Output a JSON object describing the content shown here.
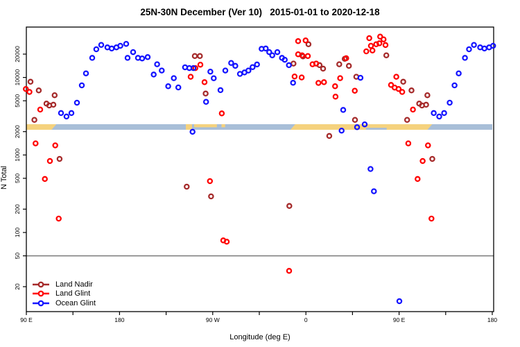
{
  "title": "25N-30N December (Ver 10)   2015-01-01 to 2020-12-18",
  "axes": {
    "x": {
      "label": "Longitude (deg E)",
      "major_ticks": [
        {
          "lon": 90,
          "label": "90 E"
        },
        {
          "lon": 180,
          "label": "180"
        },
        {
          "lon": 270,
          "label": "90 W"
        },
        {
          "lon": 360,
          "label": "0"
        },
        {
          "lon": 450,
          "label": "90 E"
        },
        {
          "lon": 540,
          "label": "180"
        }
      ],
      "minor_ticks": [
        135,
        225,
        315,
        405,
        495
      ],
      "range": [
        90,
        540
      ],
      "note": "longitude wraps eastward from 90E through 180, 90W, 0, back to 90E and 180"
    },
    "y": {
      "label": "N Total",
      "scale": "log10",
      "ticks": [
        20,
        50,
        100,
        200,
        500,
        1000,
        2000,
        5000,
        10000,
        20000
      ],
      "range": [
        8.5,
        38000
      ]
    },
    "reference_line_value": 50
  },
  "map_band": {
    "description": "land/ocean strip for 25N-30N latitude drawn across the plot",
    "top_value": 2495,
    "bottom_value": 2115,
    "ocean_color": "#a8bed8",
    "land_color": "#f5d27e",
    "land_segments": [
      {
        "from": 90,
        "to": 119,
        "part": "full",
        "slant_right": true
      },
      {
        "from": 244,
        "to": 250,
        "part": "full"
      },
      {
        "from": 252,
        "to": 274,
        "part": "top"
      },
      {
        "from": 278.5,
        "to": 282,
        "part": "top"
      },
      {
        "from": 345,
        "to": 482,
        "part": "full",
        "slant_left": true,
        "slant_right": true
      }
    ],
    "ocean_notches": [
      {
        "from": 418,
        "to": 438,
        "part": "bottom"
      }
    ]
  },
  "legend": {
    "items": [
      {
        "label": "Land Nadir",
        "color": "#a52a2a"
      },
      {
        "label": "Land Glint",
        "color": "#ff0000"
      },
      {
        "label": "Ocean Glint",
        "color": "#1414ff"
      }
    ]
  },
  "chart_data": {
    "type": "scatter",
    "marker": "open-circle",
    "title": "25N-30N December (Ver 10)   2015-01-01 to 2020-12-18",
    "xlabel": "Longitude (deg E)",
    "ylabel": "N Total",
    "xlim": [
      90,
      540
    ],
    "ylog": true,
    "repeat_rule": "points with lon <= 182 are re-plotted at lon + 360 (axis spans 450 deg)",
    "series": [
      {
        "name": "Land Nadir",
        "color": "#a52a2a",
        "points": [
          [
            94,
            8800
          ],
          [
            102,
            6800
          ],
          [
            109.4,
            4600
          ],
          [
            112.1,
            4350
          ],
          [
            116.1,
            4450
          ],
          [
            117.3,
            5900
          ],
          [
            97.8,
            2840
          ],
          [
            122.1,
            890
          ],
          [
            252.7,
            18900
          ],
          [
            257.6,
            18900
          ],
          [
            263.2,
            6200
          ],
          [
            244.9,
            390
          ],
          [
            268.4,
            292
          ],
          [
            344,
            220
          ],
          [
            348,
            15100
          ],
          [
            357.2,
            18700
          ],
          [
            362.5,
            26800
          ],
          [
            373.2,
            14400
          ],
          [
            376.6,
            13000
          ],
          [
            382.6,
            1760
          ],
          [
            392.2,
            14800
          ],
          [
            397.5,
            17400
          ],
          [
            401.5,
            14100
          ],
          [
            407.4,
            2840
          ],
          [
            408.7,
            10200
          ],
          [
            437.7,
            19300
          ]
        ]
      },
      {
        "name": "Land Glint",
        "color": "#ff0000",
        "points": [
          [
            89.5,
            7100
          ],
          [
            93,
            6500
          ],
          [
            103.4,
            3850
          ],
          [
            98.9,
            1410
          ],
          [
            117.9,
            1330
          ],
          [
            112.8,
            835
          ],
          [
            107.9,
            490
          ],
          [
            121.3,
            151
          ],
          [
            248.7,
            10200
          ],
          [
            253.2,
            13200
          ],
          [
            258.1,
            14600
          ],
          [
            262.1,
            8700
          ],
          [
            278.8,
            3440
          ],
          [
            267.3,
            460
          ],
          [
            280.2,
            79
          ],
          [
            283.5,
            76
          ],
          [
            343.8,
            32
          ],
          [
            349.1,
            10300
          ],
          [
            355.9,
            10000
          ],
          [
            352.5,
            29400
          ],
          [
            359.7,
            30000
          ],
          [
            352.5,
            19900
          ],
          [
            356.3,
            19300
          ],
          [
            361.9,
            18900
          ],
          [
            366.4,
            14800
          ],
          [
            369.9,
            15100
          ],
          [
            372.1,
            8500
          ],
          [
            377.5,
            8700
          ],
          [
            388.2,
            7700
          ],
          [
            393.1,
            9800
          ],
          [
            398.9,
            17700
          ],
          [
            388.6,
            5650
          ],
          [
            407.2,
            6740
          ],
          [
            418.3,
            21700
          ],
          [
            421.2,
            32100
          ],
          [
            422.8,
            25600
          ],
          [
            424.3,
            22300
          ],
          [
            427.9,
            26800
          ],
          [
            431,
            27600
          ],
          [
            431.7,
            33600
          ],
          [
            435,
            31000
          ],
          [
            436.9,
            26200
          ],
          [
            442.2,
            8000
          ],
          [
            445.7,
            7400
          ],
          [
            447.3,
            10200
          ]
        ]
      },
      {
        "name": "Ocean Glint",
        "color": "#1414ff",
        "points": [
          [
            123.5,
            3470
          ],
          [
            128.8,
            3130
          ],
          [
            133.5,
            3470
          ],
          [
            138.9,
            4720
          ],
          [
            143.6,
            7900
          ],
          [
            147.6,
            11300
          ],
          [
            153.6,
            17900
          ],
          [
            157.6,
            23100
          ],
          [
            162.3,
            26300
          ],
          [
            168.3,
            24400
          ],
          [
            172.4,
            23600
          ],
          [
            177,
            24400
          ],
          [
            180.8,
            25600
          ],
          [
            186.4,
            27100
          ],
          [
            187.8,
            17900
          ],
          [
            193.1,
            21200
          ],
          [
            197.8,
            17900
          ],
          [
            201.8,
            17600
          ],
          [
            207.2,
            18300
          ],
          [
            213,
            10900
          ],
          [
            216.3,
            14800
          ],
          [
            220.8,
            12300
          ],
          [
            227,
            7700
          ],
          [
            232.4,
            9800
          ],
          [
            236.8,
            7430
          ],
          [
            243.3,
            13500
          ],
          [
            247.4,
            13200
          ],
          [
            251.4,
            13200
          ],
          [
            250.5,
            1990
          ],
          [
            263.6,
            4850
          ],
          [
            267.7,
            11900
          ],
          [
            271,
            9770
          ],
          [
            277.5,
            6860
          ],
          [
            282.2,
            12300
          ],
          [
            287.8,
            15400
          ],
          [
            291.8,
            14100
          ],
          [
            296.3,
            11100
          ],
          [
            300.7,
            11600
          ],
          [
            304.5,
            12300
          ],
          [
            308.5,
            13600
          ],
          [
            312.8,
            14700
          ],
          [
            317.2,
            23400
          ],
          [
            321.2,
            23600
          ],
          [
            324.6,
            21200
          ],
          [
            327.5,
            19300
          ],
          [
            332.4,
            21200
          ],
          [
            336.9,
            17900
          ],
          [
            339.6,
            16900
          ],
          [
            343.6,
            14400
          ],
          [
            347.6,
            8530
          ],
          [
            394.5,
            2060
          ],
          [
            396,
            3810
          ],
          [
            409.4,
            2280
          ],
          [
            412.7,
            9900
          ],
          [
            416.8,
            2480
          ],
          [
            422.4,
            660
          ],
          [
            425.7,
            340
          ],
          [
            450.3,
            13
          ]
        ]
      }
    ]
  }
}
